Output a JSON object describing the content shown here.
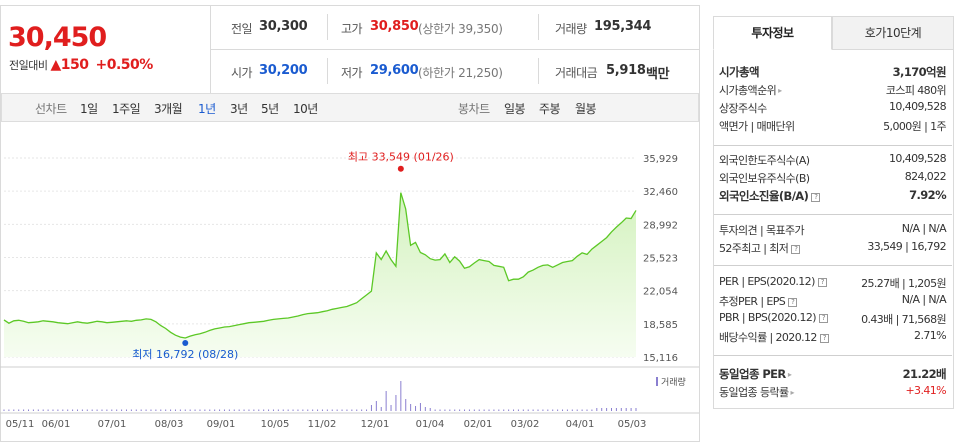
{
  "summary": {
    "current_price": "30,450",
    "change_label": "전일대비",
    "change_amount": "150",
    "change_pct": "+0.50%",
    "prev_close_label": "전일",
    "prev_close": "30,300",
    "open_label": "시가",
    "open": "30,200",
    "high_label": "고가",
    "high": "30,850",
    "upper_limit": "(상한가 39,350)",
    "low_label": "저가",
    "low": "29,600",
    "lower_limit": "(하한가 21,250)",
    "volume_label": "거래량",
    "volume": "195,344",
    "value_label": "거래대금",
    "value": "5,918",
    "value_unit": "백만"
  },
  "period_bar": {
    "line_label": "선차트",
    "line_periods": [
      "1일",
      "1주일",
      "3개월",
      "1년",
      "3년",
      "5년",
      "10년"
    ],
    "selected": "1년",
    "candle_label": "봉차트",
    "candle_periods": [
      "일봉",
      "주봉",
      "월봉"
    ]
  },
  "chart_data": {
    "type": "area",
    "y_ticks": [
      "35,929",
      "32,460",
      "28,992",
      "25,523",
      "22,054",
      "18,585",
      "15,116"
    ],
    "ylim": [
      15116,
      35929
    ],
    "x_ticks": [
      "05/11",
      "06/01",
      "07/01",
      "08/03",
      "09/01",
      "10/05",
      "11/02",
      "12/01",
      "01/04",
      "02/01",
      "03/02",
      "04/01",
      "05/03"
    ],
    "high_annotation": "최고 33,549 (01/26)",
    "low_annotation": "최저 16,792 (08/28)",
    "volume_legend": "거래량",
    "series": [
      {
        "values": [
          19000,
          18650,
          18900,
          18950,
          18850,
          18700,
          18750,
          18800,
          18900,
          18850,
          18800,
          18700,
          18650,
          18600,
          18700,
          18800,
          18700,
          18650,
          18750,
          18850,
          18800,
          18700,
          18750,
          18800,
          18850,
          18900,
          18850,
          18950,
          19000,
          19100,
          19050,
          18800,
          18400,
          18100,
          17700,
          17400,
          17200,
          17100,
          17300,
          17450,
          17550,
          17700,
          17900,
          18050,
          18150,
          18250,
          18300,
          18400,
          18500,
          18600,
          18700,
          18750,
          18800,
          18850,
          18950,
          19050,
          19100,
          19150,
          19200,
          19300,
          19400,
          19550,
          19650,
          19700,
          19750,
          19850,
          19950,
          20100,
          20200,
          20300,
          20400,
          20600,
          20800,
          21200,
          21600,
          22000,
          26000,
          25300,
          26200,
          25300,
          24600,
          32300,
          30600,
          26800,
          27100,
          26050,
          25800,
          25400,
          25250,
          25300,
          25900,
          25000,
          25600,
          25150,
          24400,
          24550,
          24950,
          25300,
          25200,
          25100,
          24700,
          24600,
          24500,
          23100,
          23250,
          23250,
          23500,
          24000,
          24200,
          24500,
          24700,
          24750,
          24500,
          24750,
          25000,
          25100,
          25200,
          25650,
          26000,
          25850,
          26400,
          26800,
          27200,
          27600,
          28200,
          28700,
          29150,
          29650,
          29600,
          30450
        ]
      }
    ]
  },
  "panel": {
    "tab_invest": "투자정보",
    "tab_orderbook": "호가10단계",
    "g1": [
      {
        "k": "시가총액",
        "v": "3,170억원",
        "bold": true
      },
      {
        "k": "시가총액순위",
        "v": "코스피 480위",
        "arrow": true
      },
      {
        "k": "상장주식수",
        "v": "10,409,528"
      },
      {
        "k": "액면가 | 매매단위",
        "v": "5,000원 | 1주"
      }
    ],
    "g2": [
      {
        "k": "외국인한도주식수(A)",
        "v": "10,409,528"
      },
      {
        "k": "외국인보유주식수(B)",
        "v": "824,022"
      },
      {
        "k": "외국인소진율(B/A)",
        "v": "7.92%",
        "bold": true,
        "q": true
      }
    ],
    "g3": [
      {
        "k": "투자의견 | 목표주가",
        "v": "N/A | N/A"
      },
      {
        "k": "52주최고 | 최저",
        "v": "33,549 | 16,792",
        "q": true
      }
    ],
    "g4": [
      {
        "k": "PER | EPS(2020.12)",
        "v": "25.27배 | 1,205원",
        "q": true
      },
      {
        "k": "추정PER | EPS",
        "v": "N/A | N/A",
        "q": true
      },
      {
        "k": "PBR | BPS(2020.12)",
        "v": "0.43배 | 71,568원",
        "q": true
      },
      {
        "k": "배당수익률 | 2020.12",
        "v": "2.71%",
        "q": true
      }
    ],
    "g5": [
      {
        "k": "동일업종 PER",
        "v": "21.22배",
        "bold": true,
        "arrow": true
      },
      {
        "k": "동일업종 등락률",
        "v": "+3.41%",
        "arrow": true,
        "red": true
      }
    ]
  },
  "colors": {
    "up": "#e01e1e",
    "down": "#1a5bd0",
    "line": "#5cc826",
    "fill": "#e9f9dc"
  }
}
